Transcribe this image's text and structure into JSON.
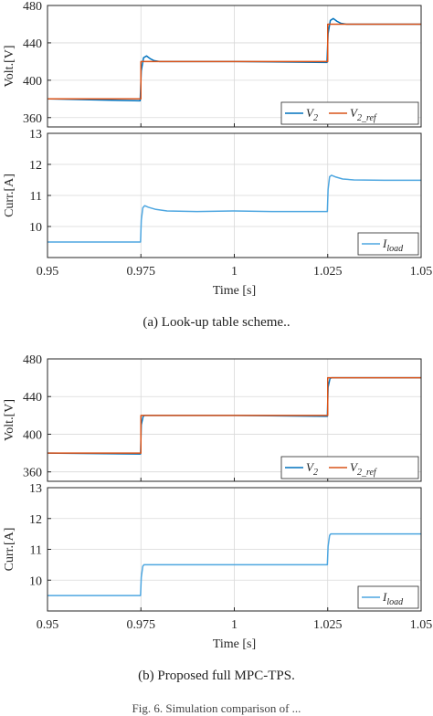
{
  "captions": {
    "a": "(a) Look-up table scheme..",
    "b": "(b) Proposed full MPC-TPS.",
    "figure": "Fig. 6. Simulation comparison of ... "
  },
  "colors": {
    "v2": "#0072BD",
    "v2ref": "#D95319",
    "iload": "#4DA6E0",
    "grid": "#d9d9d9",
    "axis": "#262626"
  },
  "chart_data": [
    {
      "type": "line",
      "panel": "a-top",
      "ylabel": "Volt.[V]",
      "ylim": [
        350,
        480
      ],
      "yticks": [
        360,
        400,
        440,
        480
      ],
      "xlim": [
        0.95,
        1.05
      ],
      "grid": true,
      "legend_position": "bottom-right",
      "series": [
        {
          "name": "V_2",
          "label_main": "V",
          "label_sub": "2",
          "x": [
            0.95,
            0.9748,
            0.9751,
            0.9757,
            0.9765,
            0.9775,
            0.9785,
            0.98,
            0.985,
            1.0,
            1.0248,
            1.0251,
            1.0257,
            1.0265,
            1.0275,
            1.0285,
            1.03,
            1.05
          ],
          "y": [
            380,
            378,
            410,
            424,
            426,
            423,
            421,
            420,
            420,
            420,
            419,
            450,
            464,
            466,
            463,
            461,
            460,
            460
          ]
        },
        {
          "name": "V_2_ref",
          "label_main": "V",
          "label_sub": "2_ref",
          "x": [
            0.95,
            0.975,
            0.975,
            1.025,
            1.025,
            1.05
          ],
          "y": [
            380,
            380,
            420,
            420,
            460,
            460
          ]
        }
      ]
    },
    {
      "type": "line",
      "panel": "a-bottom",
      "xlabel": "Time [s]",
      "ylabel": "Curr.[A]",
      "ylim": [
        9,
        13
      ],
      "yticks": [
        10,
        11,
        12,
        13
      ],
      "xlim": [
        0.95,
        1.05
      ],
      "xticks": [
        0.95,
        0.975,
        1,
        1.025,
        1.05
      ],
      "xticklabels": [
        "0.95",
        "0.975",
        "1",
        "1.025",
        "1.05"
      ],
      "grid": true,
      "legend_position": "bottom-right",
      "series": [
        {
          "name": "I_load",
          "label_main": "I",
          "label_sub": "load",
          "x": [
            0.95,
            0.9749,
            0.9751,
            0.9755,
            0.976,
            0.977,
            0.979,
            0.982,
            0.99,
            1.0,
            1.01,
            1.0249,
            1.0251,
            1.0255,
            1.026,
            1.027,
            1.029,
            1.032,
            1.04,
            1.05
          ],
          "y": [
            9.5,
            9.5,
            10.2,
            10.6,
            10.67,
            10.62,
            10.55,
            10.5,
            10.48,
            10.5,
            10.48,
            10.48,
            11.2,
            11.6,
            11.65,
            11.6,
            11.53,
            11.5,
            11.49,
            11.49
          ]
        }
      ]
    },
    {
      "type": "line",
      "panel": "b-top",
      "ylabel": "Volt.[V]",
      "ylim": [
        350,
        480
      ],
      "yticks": [
        360,
        400,
        440,
        480
      ],
      "xlim": [
        0.95,
        1.05
      ],
      "grid": true,
      "legend_position": "bottom-right",
      "series": [
        {
          "name": "V_2",
          "label_main": "V",
          "label_sub": "2",
          "x": [
            0.95,
            0.9749,
            0.9751,
            0.9756,
            0.976,
            1.0,
            1.0249,
            1.0251,
            1.0256,
            1.026,
            1.05
          ],
          "y": [
            380,
            379,
            410,
            419,
            420,
            420,
            419,
            450,
            459,
            460,
            460
          ]
        },
        {
          "name": "V_2_ref",
          "label_main": "V",
          "label_sub": "2_ref",
          "x": [
            0.95,
            0.975,
            0.975,
            1.025,
            1.025,
            1.05
          ],
          "y": [
            380,
            380,
            420,
            420,
            460,
            460
          ]
        }
      ]
    },
    {
      "type": "line",
      "panel": "b-bottom",
      "xlabel": "Time [s]",
      "ylabel": "Curr.[A]",
      "ylim": [
        9,
        13
      ],
      "yticks": [
        10,
        11,
        12,
        13
      ],
      "xlim": [
        0.95,
        1.05
      ],
      "xticks": [
        0.95,
        0.975,
        1,
        1.025,
        1.05
      ],
      "xticklabels": [
        "0.95",
        "0.975",
        "1",
        "1.025",
        "1.05"
      ],
      "grid": true,
      "legend_position": "bottom-right",
      "series": [
        {
          "name": "I_load",
          "label_main": "I",
          "label_sub": "load",
          "x": [
            0.95,
            0.9749,
            0.9751,
            0.9755,
            0.9758,
            1.0,
            1.0249,
            1.0251,
            1.0255,
            1.0258,
            1.05
          ],
          "y": [
            9.5,
            9.5,
            10.1,
            10.45,
            10.5,
            10.5,
            10.5,
            11.1,
            11.45,
            11.5,
            11.5
          ]
        }
      ]
    }
  ]
}
